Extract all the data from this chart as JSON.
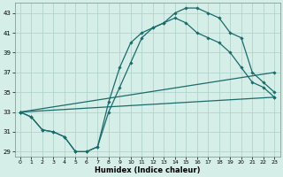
{
  "xlabel": "Humidex (Indice chaleur)",
  "bg_color": "#d6eee8",
  "grid_color": "#b0d4cc",
  "line_color": "#1a6b6b",
  "xlim": [
    -0.5,
    23.5
  ],
  "ylim": [
    28.5,
    44.0
  ],
  "yticks": [
    29,
    31,
    33,
    35,
    37,
    39,
    41,
    43
  ],
  "xticks": [
    0,
    1,
    2,
    3,
    4,
    5,
    6,
    7,
    8,
    9,
    10,
    11,
    12,
    13,
    14,
    15,
    16,
    17,
    18,
    19,
    20,
    21,
    22,
    23
  ],
  "line1_x": [
    0,
    1,
    2,
    3,
    4,
    5,
    6,
    7,
    8,
    9,
    10,
    11,
    12,
    13,
    14,
    15,
    16,
    17,
    18,
    19,
    20,
    21,
    22,
    23
  ],
  "line1_y": [
    33,
    32.5,
    31.2,
    31.0,
    30.5,
    29.0,
    29.0,
    29.5,
    34.0,
    37.5,
    40.0,
    41.0,
    41.5,
    42.0,
    43.0,
    43.5,
    43.5,
    43.0,
    42.5,
    41.0,
    40.5,
    37.0,
    36.0,
    35.0
  ],
  "line2_x": [
    0,
    1,
    2,
    3,
    4,
    5,
    6,
    7,
    8,
    9,
    10,
    11,
    12,
    13,
    14,
    15,
    16,
    17,
    18,
    19,
    20,
    21,
    22,
    23
  ],
  "line2_y": [
    33,
    32.5,
    31.2,
    31.0,
    30.5,
    29.0,
    29.0,
    29.5,
    33.0,
    35.5,
    38.0,
    40.5,
    41.5,
    42.0,
    42.5,
    42.0,
    41.0,
    40.5,
    40.0,
    39.0,
    37.5,
    36.0,
    35.5,
    34.5
  ],
  "line3_x": [
    0,
    23
  ],
  "line3_y": [
    33,
    37.0
  ],
  "line4_x": [
    0,
    23
  ],
  "line4_y": [
    33,
    34.5
  ]
}
